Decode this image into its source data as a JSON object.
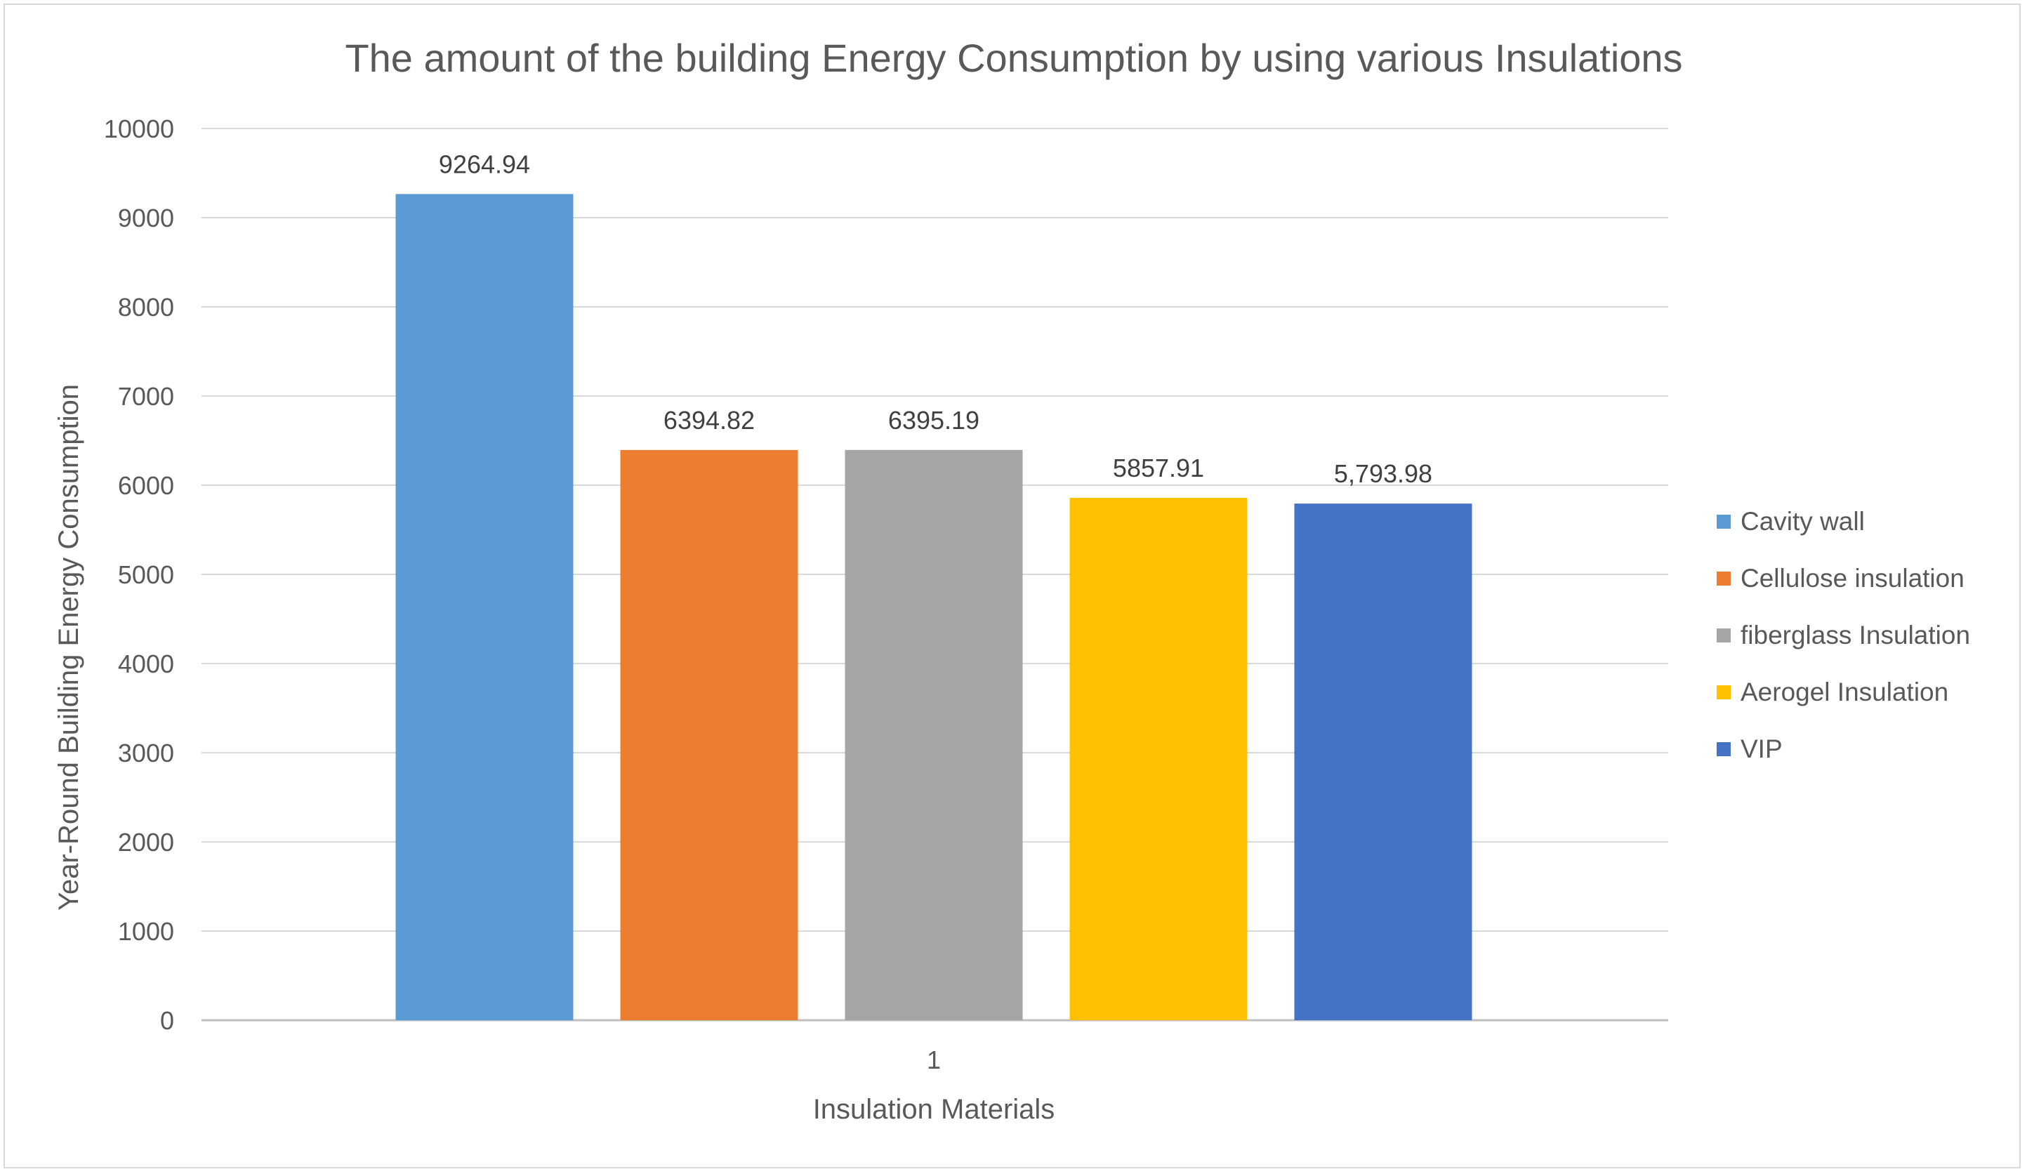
{
  "chart_data": {
    "type": "bar",
    "title": "The amount of the building Energy Consumption by using various Insulations",
    "xlabel": "Insulation Materials",
    "ylabel": "Year-Round Building Energy Consumption",
    "categories": [
      "1"
    ],
    "ylim": [
      0,
      10000
    ],
    "yticks": [
      "0",
      "1000",
      "2000",
      "3000",
      "4000",
      "5000",
      "6000",
      "7000",
      "8000",
      "9000",
      "10000"
    ],
    "grid": true,
    "legend_position": "right",
    "series": [
      {
        "name": "Cavity wall",
        "values": [
          9264.94
        ],
        "label": "9264.94",
        "color": "#5b9bd5"
      },
      {
        "name": "Cellulose insulation",
        "values": [
          6394.82
        ],
        "label": "6394.82",
        "color": "#ed7d31"
      },
      {
        "name": "fiberglass Insulation",
        "values": [
          6395.19
        ],
        "label": "6395.19",
        "color": "#a5a5a5"
      },
      {
        "name": "Aerogel Insulation",
        "values": [
          5857.91
        ],
        "label": "5857.91",
        "color": "#ffc000"
      },
      {
        "name": "VIP",
        "values": [
          5793.98
        ],
        "label": "5,793.98",
        "color": "#4472c4"
      }
    ]
  }
}
